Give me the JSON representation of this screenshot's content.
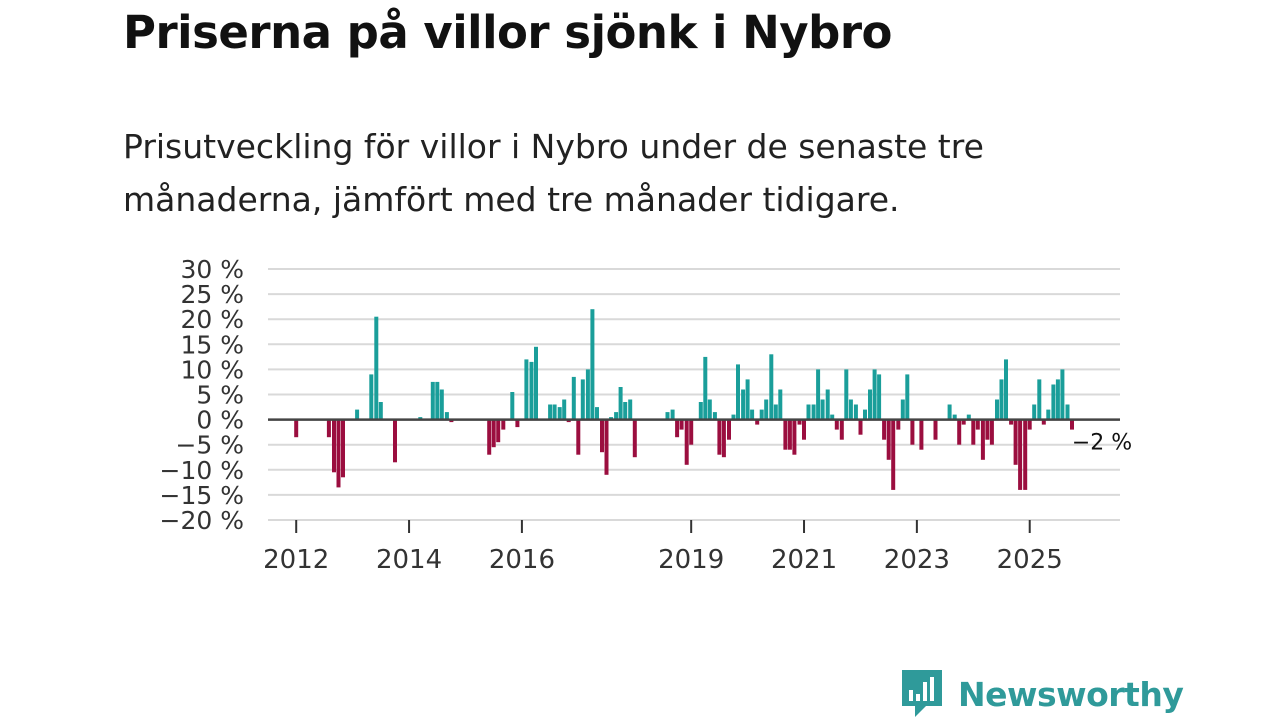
{
  "header": {
    "title": "Priserna på villor sjönk i Nybro",
    "subtitle": "Prisutveckling för villor i Nybro under de senaste tre månaderna, jämfört med tre månader tidigare."
  },
  "chart_data": {
    "type": "bar",
    "title": "Priserna på villor sjönk i Nybro",
    "xlabel": "",
    "ylabel": "",
    "unit": "%",
    "ylim": [
      -20,
      30
    ],
    "yticks": [
      30,
      25,
      20,
      15,
      10,
      5,
      0,
      -5,
      -10,
      -15,
      -20
    ],
    "ytick_labels": [
      "30 %",
      "25 %",
      "20 %",
      "15 %",
      "10 %",
      "5 %",
      "0 %",
      "−5 %",
      "−10 %",
      "−15 %",
      "−20 %"
    ],
    "xlim": [
      2011.5,
      2026.6
    ],
    "xticks": [
      {
        "year": 2012,
        "label": "2012"
      },
      {
        "year": 2014,
        "label": "2014"
      },
      {
        "year": 2016,
        "label": "2016"
      },
      {
        "year": 2019,
        "label": "2019"
      },
      {
        "year": 2021,
        "label": "2021"
      },
      {
        "year": 2023,
        "label": "2023"
      },
      {
        "year": 2025,
        "label": "2025"
      }
    ],
    "colors": {
      "positive": "#1a9e9a",
      "negative": "#9b0e3f",
      "zero_line": "#444444",
      "grid": "#d9d9d9"
    },
    "series": [
      {
        "name": "Prisutveckling",
        "points": [
          {
            "t": 2012.0,
            "v": -3.5
          },
          {
            "t": 2012.58,
            "v": -3.5
          },
          {
            "t": 2012.67,
            "v": -10.5
          },
          {
            "t": 2012.75,
            "v": -13.5
          },
          {
            "t": 2012.83,
            "v": -11.5
          },
          {
            "t": 2013.08,
            "v": 2.0
          },
          {
            "t": 2013.33,
            "v": 9.0
          },
          {
            "t": 2013.42,
            "v": 20.5
          },
          {
            "t": 2013.5,
            "v": 3.5
          },
          {
            "t": 2013.75,
            "v": -8.5
          },
          {
            "t": 2014.2,
            "v": 0.5
          },
          {
            "t": 2014.42,
            "v": 7.5
          },
          {
            "t": 2014.5,
            "v": 7.5
          },
          {
            "t": 2014.58,
            "v": 6.0
          },
          {
            "t": 2014.67,
            "v": 1.5
          },
          {
            "t": 2014.75,
            "v": -0.5
          },
          {
            "t": 2015.42,
            "v": -7.0
          },
          {
            "t": 2015.5,
            "v": -5.5
          },
          {
            "t": 2015.58,
            "v": -4.5
          },
          {
            "t": 2015.67,
            "v": -2.0
          },
          {
            "t": 2015.83,
            "v": 5.5
          },
          {
            "t": 2015.92,
            "v": -1.5
          },
          {
            "t": 2016.08,
            "v": 12.0
          },
          {
            "t": 2016.17,
            "v": 11.5
          },
          {
            "t": 2016.25,
            "v": 14.5
          },
          {
            "t": 2016.5,
            "v": 3.0
          },
          {
            "t": 2016.58,
            "v": 3.0
          },
          {
            "t": 2016.67,
            "v": 2.5
          },
          {
            "t": 2016.75,
            "v": 4.0
          },
          {
            "t": 2016.83,
            "v": -0.5
          },
          {
            "t": 2016.92,
            "v": 8.5
          },
          {
            "t": 2017.0,
            "v": -7.0
          },
          {
            "t": 2017.08,
            "v": 8.0
          },
          {
            "t": 2017.17,
            "v": 10.0
          },
          {
            "t": 2017.25,
            "v": 22.0
          },
          {
            "t": 2017.33,
            "v": 2.5
          },
          {
            "t": 2017.42,
            "v": -6.5
          },
          {
            "t": 2017.5,
            "v": -11.0
          },
          {
            "t": 2017.58,
            "v": 0.5
          },
          {
            "t": 2017.67,
            "v": 1.5
          },
          {
            "t": 2017.75,
            "v": 6.5
          },
          {
            "t": 2017.83,
            "v": 3.5
          },
          {
            "t": 2017.92,
            "v": 4.0
          },
          {
            "t": 2018.0,
            "v": -7.5
          },
          {
            "t": 2018.58,
            "v": 1.5
          },
          {
            "t": 2018.67,
            "v": 2.0
          },
          {
            "t": 2018.75,
            "v": -3.5
          },
          {
            "t": 2018.83,
            "v": -2.0
          },
          {
            "t": 2018.92,
            "v": -9.0
          },
          {
            "t": 2019.0,
            "v": -5.0
          },
          {
            "t": 2019.17,
            "v": 3.5
          },
          {
            "t": 2019.25,
            "v": 12.5
          },
          {
            "t": 2019.33,
            "v": 4.0
          },
          {
            "t": 2019.42,
            "v": 1.5
          },
          {
            "t": 2019.5,
            "v": -7.0
          },
          {
            "t": 2019.58,
            "v": -7.5
          },
          {
            "t": 2019.67,
            "v": -4.0
          },
          {
            "t": 2019.75,
            "v": 1.0
          },
          {
            "t": 2019.83,
            "v": 11.0
          },
          {
            "t": 2019.92,
            "v": 6.0
          },
          {
            "t": 2020.0,
            "v": 8.0
          },
          {
            "t": 2020.08,
            "v": 2.0
          },
          {
            "t": 2020.17,
            "v": -1.0
          },
          {
            "t": 2020.25,
            "v": 2.0
          },
          {
            "t": 2020.33,
            "v": 4.0
          },
          {
            "t": 2020.42,
            "v": 13.0
          },
          {
            "t": 2020.5,
            "v": 3.0
          },
          {
            "t": 2020.58,
            "v": 6.0
          },
          {
            "t": 2020.67,
            "v": -6.0
          },
          {
            "t": 2020.75,
            "v": -6.0
          },
          {
            "t": 2020.83,
            "v": -7.0
          },
          {
            "t": 2020.92,
            "v": -1.0
          },
          {
            "t": 2021.0,
            "v": -4.0
          },
          {
            "t": 2021.08,
            "v": 3.0
          },
          {
            "t": 2021.17,
            "v": 3.0
          },
          {
            "t": 2021.25,
            "v": 10.0
          },
          {
            "t": 2021.33,
            "v": 4.0
          },
          {
            "t": 2021.42,
            "v": 6.0
          },
          {
            "t": 2021.5,
            "v": 1.0
          },
          {
            "t": 2021.58,
            "v": -2.0
          },
          {
            "t": 2021.67,
            "v": -4.0
          },
          {
            "t": 2021.75,
            "v": 10.0
          },
          {
            "t": 2021.83,
            "v": 4.0
          },
          {
            "t": 2021.92,
            "v": 3.0
          },
          {
            "t": 2022.0,
            "v": -3.0
          },
          {
            "t": 2022.08,
            "v": 2.0
          },
          {
            "t": 2022.17,
            "v": 6.0
          },
          {
            "t": 2022.25,
            "v": 10.0
          },
          {
            "t": 2022.33,
            "v": 9.0
          },
          {
            "t": 2022.42,
            "v": -4.0
          },
          {
            "t": 2022.5,
            "v": -8.0
          },
          {
            "t": 2022.58,
            "v": -14.0
          },
          {
            "t": 2022.67,
            "v": -2.0
          },
          {
            "t": 2022.75,
            "v": 4.0
          },
          {
            "t": 2022.83,
            "v": 9.0
          },
          {
            "t": 2022.92,
            "v": -5.0
          },
          {
            "t": 2023.08,
            "v": -6.0
          },
          {
            "t": 2023.33,
            "v": -4.0
          },
          {
            "t": 2023.58,
            "v": 3.0
          },
          {
            "t": 2023.67,
            "v": 1.0
          },
          {
            "t": 2023.75,
            "v": -5.0
          },
          {
            "t": 2023.83,
            "v": -1.0
          },
          {
            "t": 2023.92,
            "v": 1.0
          },
          {
            "t": 2024.0,
            "v": -5.0
          },
          {
            "t": 2024.08,
            "v": -2.0
          },
          {
            "t": 2024.17,
            "v": -8.0
          },
          {
            "t": 2024.25,
            "v": -4.0
          },
          {
            "t": 2024.33,
            "v": -5.0
          },
          {
            "t": 2024.42,
            "v": 4.0
          },
          {
            "t": 2024.5,
            "v": 8.0
          },
          {
            "t": 2024.58,
            "v": 12.0
          },
          {
            "t": 2024.67,
            "v": -1.0
          },
          {
            "t": 2024.75,
            "v": -9.0
          },
          {
            "t": 2024.83,
            "v": -14.0
          },
          {
            "t": 2024.92,
            "v": -14.0
          },
          {
            "t": 2025.0,
            "v": -2.0
          },
          {
            "t": 2025.08,
            "v": 3.0
          },
          {
            "t": 2025.17,
            "v": 8.0
          },
          {
            "t": 2025.25,
            "v": -1.0
          },
          {
            "t": 2025.33,
            "v": 2.0
          },
          {
            "t": 2025.42,
            "v": 7.0
          },
          {
            "t": 2025.5,
            "v": 8.0
          },
          {
            "t": 2025.58,
            "v": 10.0
          },
          {
            "t": 2025.67,
            "v": 3.0
          },
          {
            "t": 2025.75,
            "v": -2.0
          }
        ]
      }
    ],
    "annotations": [
      {
        "t": 2025.75,
        "v": -2.0,
        "label": "−2 %"
      }
    ]
  },
  "logo": {
    "name": "Newsworthy",
    "color": "#2f9a9a",
    "icon": "newsworthy-bar-chart-icon"
  }
}
